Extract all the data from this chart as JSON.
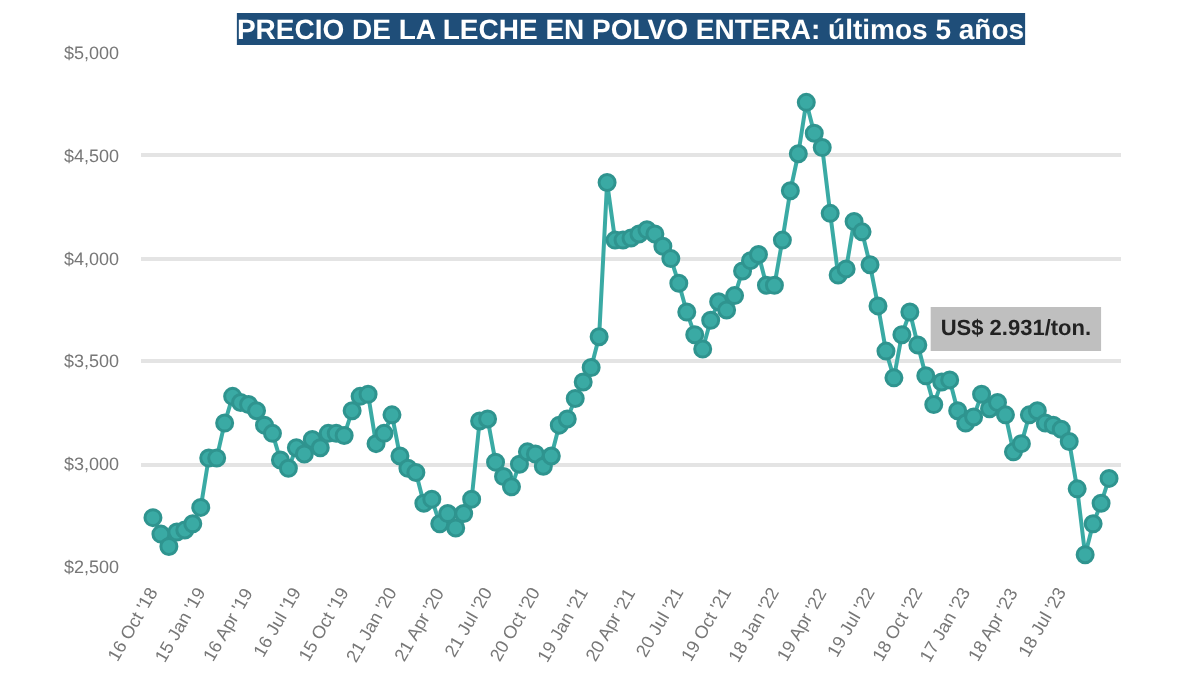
{
  "chart_data": {
    "type": "line",
    "title": "PRECIO DE LA LECHE EN POLVO ENTERA: últimos 5 años",
    "categories": [
      "16 Oct '18",
      null,
      null,
      null,
      null,
      null,
      "15 Jan '19",
      null,
      null,
      null,
      null,
      null,
      "16 Apr '19",
      null,
      null,
      null,
      null,
      null,
      "16 Jul '19",
      null,
      null,
      null,
      null,
      null,
      "15 Oct '19",
      null,
      null,
      null,
      null,
      null,
      "21 Jan '20",
      null,
      null,
      null,
      null,
      null,
      "21 Apr '20",
      null,
      null,
      null,
      null,
      null,
      "21 Jul '20",
      null,
      null,
      null,
      null,
      null,
      "20 Oct '20",
      null,
      null,
      null,
      null,
      null,
      "19 Jan '21",
      null,
      null,
      null,
      null,
      null,
      "20 Apr '21",
      null,
      null,
      null,
      null,
      null,
      "20 Jul '21",
      null,
      null,
      null,
      null,
      null,
      "19 Oct '21",
      null,
      null,
      null,
      null,
      null,
      "18 Jan '22",
      null,
      null,
      null,
      null,
      null,
      "19 Apr '22",
      null,
      null,
      null,
      null,
      null,
      "19 Jul '22",
      null,
      null,
      null,
      null,
      null,
      "18 Oct '22",
      null,
      null,
      null,
      null,
      null,
      "17 Jan '23",
      null,
      null,
      null,
      null,
      null,
      "18 Apr '23",
      null,
      null,
      null,
      null,
      null,
      "18 Jul '23",
      null,
      null,
      null,
      null,
      null,
      null
    ],
    "series": [
      {
        "color": "#3aaaa4",
        "values": [
          2740,
          2660,
          2600,
          2670,
          2680,
          2710,
          2790,
          3030,
          3030,
          3200,
          3330,
          3300,
          3290,
          3260,
          3190,
          3150,
          3020,
          2980,
          3080,
          3050,
          3120,
          3080,
          3150,
          3150,
          3140,
          3260,
          3330,
          3340,
          3100,
          3150,
          3240,
          3040,
          2980,
          2960,
          2810,
          2830,
          2710,
          2760,
          2690,
          2760,
          2830,
          3210,
          3220,
          3010,
          2940,
          2890,
          3000,
          3060,
          3050,
          2990,
          3040,
          3190,
          3220,
          3320,
          3400,
          3470,
          3620,
          4370,
          4090,
          4090,
          4100,
          4120,
          4140,
          4120,
          4060,
          4000,
          3880,
          3740,
          3630,
          3560,
          3700,
          3790,
          3750,
          3820,
          3940,
          3990,
          4020,
          3870,
          3870,
          4090,
          4330,
          4510,
          4760,
          4610,
          4540,
          4220,
          3920,
          3950,
          4180,
          4130,
          3970,
          3770,
          3550,
          3420,
          3630,
          3740,
          3580,
          3430,
          3290,
          3400,
          3410,
          3260,
          3200,
          3230,
          3340,
          3270,
          3300,
          3240,
          3060,
          3100,
          3240,
          3260,
          3200,
          3190,
          3170,
          3110,
          2880,
          2560,
          2710,
          2810,
          2931
        ]
      }
    ],
    "ylim": [
      2500,
      5000
    ],
    "yticks": [
      {
        "value": 2500,
        "label": "$2,500"
      },
      {
        "value": 3000,
        "label": "$3,000"
      },
      {
        "value": 3500,
        "label": "$3,500"
      },
      {
        "value": 4000,
        "label": "$4,000"
      },
      {
        "value": 4500,
        "label": "$4,500"
      },
      {
        "value": 5000,
        "label": "$5,000"
      }
    ],
    "grid": "y",
    "marker": "circle",
    "line_style": "solid",
    "annotations": [
      "US$ 2.931/ton."
    ]
  }
}
